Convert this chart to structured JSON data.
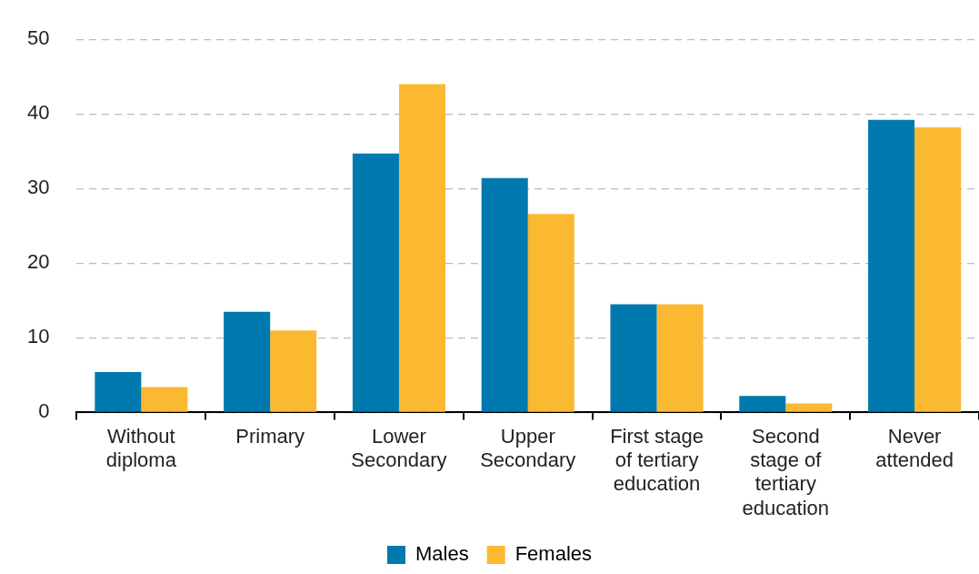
{
  "chart_data": {
    "type": "bar",
    "categories": [
      "Without diploma",
      "Primary",
      "Lower Secondary",
      "Upper Secondary",
      "First stage of tertiary education",
      "Second stage of tertiary education",
      "Never attended"
    ],
    "series": [
      {
        "name": "Males",
        "color": "#0079ae",
        "values": [
          5.4,
          13.5,
          34.7,
          31.4,
          14.5,
          2.2,
          39.2
        ]
      },
      {
        "name": "Females",
        "color": "#fbb831",
        "values": [
          3.4,
          11.0,
          44.0,
          26.6,
          14.5,
          1.2,
          38.2
        ]
      }
    ],
    "ylim": [
      0,
      50
    ],
    "yticks": [
      0,
      10,
      20,
      30,
      40,
      50
    ],
    "grid": "y",
    "legend": "bottom"
  }
}
